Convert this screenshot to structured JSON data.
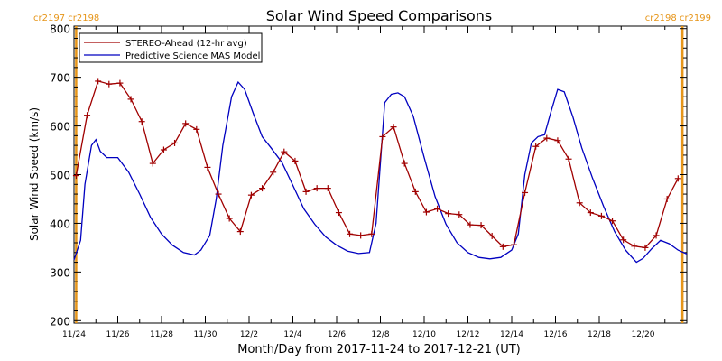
{
  "chart_data": {
    "type": "line",
    "title": "Solar Wind Speed Comparisons",
    "xlabel": "Month/Day from 2017-11-24 to 2017-12-21 (UT)",
    "ylabel": "Solar Wind Speed (km/s)",
    "xlim": [
      0,
      28
    ],
    "ylim": [
      195,
      805
    ],
    "yticks": [
      200,
      300,
      400,
      500,
      600,
      700,
      800
    ],
    "xticks": [
      {
        "x": 0,
        "label": "11/24"
      },
      {
        "x": 2,
        "label": "11/26"
      },
      {
        "x": 4,
        "label": "11/28"
      },
      {
        "x": 6,
        "label": "11/30"
      },
      {
        "x": 8,
        "label": "12/2"
      },
      {
        "x": 10,
        "label": "12/4"
      },
      {
        "x": 12,
        "label": "12/6"
      },
      {
        "x": 14,
        "label": "12/8"
      },
      {
        "x": 16,
        "label": "12/10"
      },
      {
        "x": 18,
        "label": "12/12"
      },
      {
        "x": 20,
        "label": "12/14"
      },
      {
        "x": 22,
        "label": "12/16"
      },
      {
        "x": 24,
        "label": "12/18"
      },
      {
        "x": 26,
        "label": "12/20"
      }
    ],
    "carrington_labels": {
      "left": "cr2197 cr2198",
      "right": "cr2198 cr2199"
    },
    "carrington_marker_x": [
      0.1,
      27.8
    ],
    "legend_position": "top-left",
    "series": [
      {
        "name": "STEREO-Ahead (12-hr avg)",
        "color": "#a00000",
        "markers": true,
        "points": [
          [
            0.1,
            498
          ],
          [
            0.6,
            622
          ],
          [
            1.1,
            692
          ],
          [
            1.6,
            686
          ],
          [
            2.1,
            688
          ],
          [
            2.6,
            655
          ],
          [
            3.1,
            609
          ],
          [
            3.6,
            523
          ],
          [
            4.1,
            551
          ],
          [
            4.6,
            565
          ],
          [
            5.1,
            605
          ],
          [
            5.6,
            593
          ],
          [
            6.1,
            515
          ],
          [
            6.6,
            460
          ],
          [
            7.1,
            410
          ],
          [
            7.6,
            383
          ],
          [
            8.1,
            458
          ],
          [
            8.6,
            472
          ],
          [
            9.1,
            505
          ],
          [
            9.6,
            547
          ],
          [
            10.1,
            528
          ],
          [
            10.6,
            465
          ],
          [
            11.1,
            472
          ],
          [
            11.6,
            472
          ],
          [
            12.1,
            422
          ],
          [
            12.6,
            378
          ],
          [
            13.1,
            375
          ],
          [
            13.6,
            378
          ],
          [
            14.1,
            578
          ],
          [
            14.6,
            598
          ],
          [
            15.1,
            523
          ],
          [
            15.6,
            465
          ],
          [
            16.1,
            423
          ],
          [
            16.6,
            430
          ],
          [
            17.1,
            420
          ],
          [
            17.6,
            418
          ],
          [
            18.1,
            397
          ],
          [
            18.6,
            396
          ],
          [
            19.1,
            374
          ],
          [
            19.6,
            352
          ],
          [
            20.1,
            356
          ],
          [
            20.6,
            463
          ],
          [
            21.1,
            558
          ],
          [
            21.6,
            575
          ],
          [
            22.1,
            570
          ],
          [
            22.6,
            532
          ],
          [
            23.1,
            442
          ],
          [
            23.6,
            422
          ],
          [
            24.1,
            415
          ],
          [
            24.6,
            405
          ],
          [
            25.1,
            366
          ],
          [
            25.6,
            353
          ],
          [
            26.1,
            350
          ],
          [
            26.6,
            375
          ],
          [
            27.1,
            450
          ],
          [
            27.6,
            492
          ]
        ]
      },
      {
        "name": "Predictive Science MAS Model",
        "color": "#0000c0",
        "markers": false,
        "points": [
          [
            0.0,
            325
          ],
          [
            0.3,
            365
          ],
          [
            0.5,
            480
          ],
          [
            0.8,
            560
          ],
          [
            1.0,
            572
          ],
          [
            1.2,
            548
          ],
          [
            1.5,
            535
          ],
          [
            2.0,
            535
          ],
          [
            2.5,
            505
          ],
          [
            3.0,
            460
          ],
          [
            3.5,
            412
          ],
          [
            4.0,
            378
          ],
          [
            4.5,
            355
          ],
          [
            5.0,
            340
          ],
          [
            5.5,
            335
          ],
          [
            5.8,
            345
          ],
          [
            6.2,
            375
          ],
          [
            6.5,
            450
          ],
          [
            6.8,
            560
          ],
          [
            7.2,
            660
          ],
          [
            7.5,
            690
          ],
          [
            7.8,
            675
          ],
          [
            8.2,
            625
          ],
          [
            8.6,
            578
          ],
          [
            9.0,
            555
          ],
          [
            9.5,
            525
          ],
          [
            10.0,
            478
          ],
          [
            10.5,
            430
          ],
          [
            11.0,
            398
          ],
          [
            11.5,
            372
          ],
          [
            12.0,
            355
          ],
          [
            12.5,
            343
          ],
          [
            13.0,
            338
          ],
          [
            13.5,
            340
          ],
          [
            13.8,
            400
          ],
          [
            14.2,
            648
          ],
          [
            14.5,
            665
          ],
          [
            14.8,
            668
          ],
          [
            15.1,
            660
          ],
          [
            15.5,
            620
          ],
          [
            16.0,
            535
          ],
          [
            16.5,
            455
          ],
          [
            17.0,
            398
          ],
          [
            17.5,
            360
          ],
          [
            18.0,
            340
          ],
          [
            18.5,
            330
          ],
          [
            19.0,
            327
          ],
          [
            19.5,
            330
          ],
          [
            20.0,
            345
          ],
          [
            20.3,
            378
          ],
          [
            20.6,
            500
          ],
          [
            20.9,
            565
          ],
          [
            21.2,
            578
          ],
          [
            21.5,
            582
          ],
          [
            21.8,
            630
          ],
          [
            22.1,
            675
          ],
          [
            22.4,
            670
          ],
          [
            22.8,
            618
          ],
          [
            23.2,
            555
          ],
          [
            23.7,
            492
          ],
          [
            24.2,
            435
          ],
          [
            24.7,
            383
          ],
          [
            25.2,
            345
          ],
          [
            25.7,
            320
          ],
          [
            26.0,
            328
          ],
          [
            26.4,
            348
          ],
          [
            26.8,
            365
          ],
          [
            27.2,
            358
          ],
          [
            27.6,
            345
          ],
          [
            28.0,
            337
          ]
        ]
      }
    ]
  }
}
